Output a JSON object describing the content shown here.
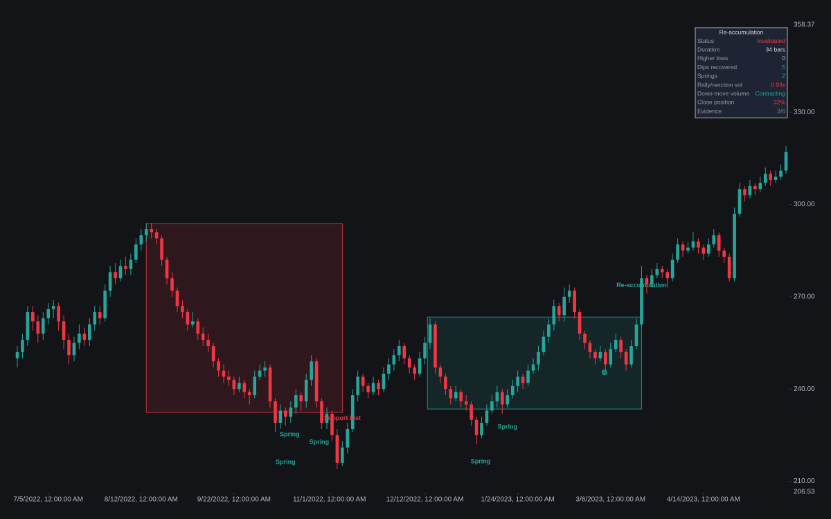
{
  "chart_data": {
    "type": "candlestick",
    "ylim": [
      206.53,
      358.37
    ],
    "yticks": [
      {
        "value": 330,
        "label": "330.00"
      },
      {
        "value": 300,
        "label": "300.00"
      },
      {
        "value": 270,
        "label": "270.00"
      },
      {
        "value": 240,
        "label": "240.00"
      },
      {
        "value": 210,
        "label": "210.00"
      }
    ],
    "xticks": [
      {
        "value": 6,
        "label": "7/5/2022, 12:00:00 AM"
      },
      {
        "value": 24,
        "label": "8/12/2022, 12:00:00 AM"
      },
      {
        "value": 42,
        "label": "9/22/2022, 12:00:00 AM"
      },
      {
        "value": 60.5,
        "label": "11/1/2022, 12:00:00 AM"
      },
      {
        "value": 79,
        "label": "12/12/2022, 12:00:00 AM"
      },
      {
        "value": 97,
        "label": "1/24/2023, 12:00:00 AM"
      },
      {
        "value": 115,
        "label": "3/6/2023, 12:00:00 AM"
      },
      {
        "value": 133,
        "label": "4/14/2023, 12:00:00 AM"
      }
    ],
    "up_color": "#26a69a",
    "down_color": "#f23645",
    "candles": [
      [
        250,
        254,
        247,
        252
      ],
      [
        252,
        258,
        250,
        256
      ],
      [
        256,
        267,
        254,
        265
      ],
      [
        265,
        267,
        259,
        262
      ],
      [
        262,
        264,
        255,
        258
      ],
      [
        258,
        265,
        256,
        263
      ],
      [
        263,
        268,
        261,
        266
      ],
      [
        266,
        269,
        263,
        267
      ],
      [
        267,
        268,
        259,
        262
      ],
      [
        262,
        264,
        253,
        256
      ],
      [
        256,
        258,
        248,
        251
      ],
      [
        251,
        257,
        249,
        255
      ],
      [
        255,
        261,
        253,
        258
      ],
      [
        258,
        260,
        254,
        256
      ],
      [
        256,
        263,
        254,
        261
      ],
      [
        261,
        267,
        259,
        265
      ],
      [
        265,
        267,
        261,
        263
      ],
      [
        263,
        274,
        262,
        272
      ],
      [
        272,
        280,
        270,
        278
      ],
      [
        278,
        281,
        274,
        276
      ],
      [
        276,
        282,
        275,
        280
      ],
      [
        280,
        283,
        277,
        279
      ],
      [
        279,
        284,
        277,
        282
      ],
      [
        282,
        289,
        281,
        287
      ],
      [
        287,
        292,
        285,
        290
      ],
      [
        290,
        294,
        288,
        292
      ],
      [
        292,
        294,
        289,
        291
      ],
      [
        291,
        292,
        287,
        289
      ],
      [
        289,
        290,
        280,
        282
      ],
      [
        282,
        283,
        274,
        276
      ],
      [
        276,
        278,
        270,
        272
      ],
      [
        272,
        273,
        265,
        267
      ],
      [
        267,
        269,
        263,
        265
      ],
      [
        265,
        266,
        259,
        261
      ],
      [
        261,
        265,
        260,
        262
      ],
      [
        262,
        263,
        256,
        258
      ],
      [
        258,
        260,
        254,
        256
      ],
      [
        256,
        258,
        252,
        254
      ],
      [
        254,
        255,
        247,
        249
      ],
      [
        249,
        250,
        244,
        246
      ],
      [
        246,
        248,
        242,
        244
      ],
      [
        244,
        246,
        241,
        243
      ],
      [
        243,
        244,
        238,
        240
      ],
      [
        240,
        244,
        239,
        242
      ],
      [
        242,
        243,
        237,
        239
      ],
      [
        239,
        240,
        235,
        238
      ],
      [
        238,
        246,
        237,
        244
      ],
      [
        244,
        248,
        243,
        246
      ],
      [
        246,
        249,
        244,
        247
      ],
      [
        247,
        248,
        234,
        236
      ],
      [
        236,
        237,
        226,
        229
      ],
      [
        229,
        235,
        227,
        233
      ],
      [
        233,
        234,
        228,
        231
      ],
      [
        231,
        236,
        229,
        234
      ],
      [
        234,
        240,
        232,
        238
      ],
      [
        238,
        239,
        233,
        236
      ],
      [
        236,
        245,
        234,
        243
      ],
      [
        243,
        251,
        241,
        249
      ],
      [
        249,
        250,
        234,
        236
      ],
      [
        236,
        237,
        227,
        229
      ],
      [
        229,
        234,
        227,
        232
      ],
      [
        232,
        233,
        223,
        225
      ],
      [
        225,
        227,
        214,
        216
      ],
      [
        216,
        223,
        215,
        221
      ],
      [
        221,
        229,
        219,
        227
      ],
      [
        227,
        240,
        226,
        238
      ],
      [
        238,
        246,
        236,
        244
      ],
      [
        244,
        245,
        239,
        241
      ],
      [
        241,
        242,
        237,
        239
      ],
      [
        239,
        244,
        238,
        242
      ],
      [
        242,
        243,
        238,
        240
      ],
      [
        240,
        247,
        239,
        245
      ],
      [
        245,
        250,
        243,
        248
      ],
      [
        248,
        253,
        246,
        251
      ],
      [
        251,
        256,
        249,
        254
      ],
      [
        254,
        255,
        248,
        250
      ],
      [
        250,
        251,
        245,
        247
      ],
      [
        247,
        248,
        243,
        245
      ],
      [
        245,
        252,
        244,
        250
      ],
      [
        250,
        257,
        248,
        255
      ],
      [
        255,
        263,
        253,
        261
      ],
      [
        261,
        262,
        245,
        247
      ],
      [
        247,
        248,
        242,
        244
      ],
      [
        244,
        245,
        238,
        240
      ],
      [
        240,
        241,
        235,
        237
      ],
      [
        237,
        241,
        236,
        239
      ],
      [
        239,
        240,
        234,
        236
      ],
      [
        236,
        238,
        233,
        235
      ],
      [
        235,
        236,
        228,
        230
      ],
      [
        230,
        231,
        222,
        225
      ],
      [
        225,
        231,
        224,
        229
      ],
      [
        229,
        235,
        228,
        233
      ],
      [
        233,
        238,
        232,
        236
      ],
      [
        236,
        241,
        234,
        239
      ],
      [
        239,
        240,
        232,
        235
      ],
      [
        235,
        240,
        234,
        238
      ],
      [
        238,
        243,
        237,
        241
      ],
      [
        241,
        246,
        239,
        244
      ],
      [
        244,
        245,
        240,
        242
      ],
      [
        242,
        248,
        241,
        246
      ],
      [
        246,
        250,
        245,
        248
      ],
      [
        248,
        254,
        246,
        252
      ],
      [
        252,
        259,
        251,
        257
      ],
      [
        257,
        263,
        255,
        261
      ],
      [
        261,
        269,
        259,
        267
      ],
      [
        267,
        268,
        262,
        264
      ],
      [
        264,
        273,
        262,
        270
      ],
      [
        270,
        274,
        268,
        272
      ],
      [
        272,
        273,
        263,
        265
      ],
      [
        265,
        266,
        256,
        258
      ],
      [
        258,
        259,
        253,
        255
      ],
      [
        255,
        256,
        250,
        252
      ],
      [
        252,
        253,
        248,
        250
      ],
      [
        250,
        254,
        249,
        252
      ],
      [
        252,
        253,
        246,
        248
      ],
      [
        248,
        255,
        247,
        253
      ],
      [
        253,
        258,
        252,
        256
      ],
      [
        256,
        257,
        250,
        252
      ],
      [
        252,
        253,
        246,
        248
      ],
      [
        248,
        256,
        247,
        254
      ],
      [
        254,
        263,
        253,
        261
      ],
      [
        261,
        280,
        260,
        276
      ],
      [
        276,
        277,
        271,
        274
      ],
      [
        274,
        279,
        273,
        277
      ],
      [
        277,
        281,
        276,
        279
      ],
      [
        279,
        280,
        276,
        278
      ],
      [
        278,
        279,
        273,
        276
      ],
      [
        276,
        284,
        275,
        282
      ],
      [
        282,
        289,
        281,
        287
      ],
      [
        287,
        288,
        283,
        285
      ],
      [
        285,
        288,
        284,
        286
      ],
      [
        286,
        291,
        285,
        288
      ],
      [
        288,
        289,
        284,
        286
      ],
      [
        286,
        287,
        282,
        284
      ],
      [
        284,
        289,
        283,
        287
      ],
      [
        287,
        292,
        286,
        290
      ],
      [
        290,
        291,
        283,
        285
      ],
      [
        285,
        286,
        281,
        283
      ],
      [
        283,
        284,
        275,
        276
      ],
      [
        276,
        299,
        275,
        297
      ],
      [
        297,
        307,
        296,
        305
      ],
      [
        305,
        306,
        301,
        303
      ],
      [
        303,
        308,
        302,
        306
      ],
      [
        306,
        307,
        303,
        305
      ],
      [
        305,
        309,
        304,
        307
      ],
      [
        307,
        312,
        306,
        310
      ],
      [
        310,
        311,
        306,
        308
      ],
      [
        308,
        311,
        307,
        309
      ],
      [
        309,
        313,
        308,
        311
      ],
      [
        311,
        319,
        310,
        317
      ]
    ],
    "zones": [
      {
        "start": 25,
        "end": 63,
        "top": 293.8,
        "bottom": 232.4,
        "color": "#f23645"
      },
      {
        "start": 79.5,
        "end": 121,
        "top": 263.4,
        "bottom": 233.5,
        "color": "#26a69a"
      }
    ],
    "annotations": [
      {
        "text": "Support lost",
        "x": 63,
        "y": 230.5,
        "color": "#f23645"
      },
      {
        "text": "Spring",
        "x": 52.8,
        "y": 225.2,
        "color": "#26a69a"
      },
      {
        "text": "Spring",
        "x": 58.5,
        "y": 222.7,
        "color": "#26a69a"
      },
      {
        "text": "Spring",
        "x": 52,
        "y": 216.2,
        "color": "#26a69a"
      },
      {
        "text": "Spring",
        "x": 89.8,
        "y": 216.4,
        "color": "#26a69a"
      },
      {
        "text": "Spring",
        "x": 95,
        "y": 227.7,
        "color": "#26a69a"
      },
      {
        "text": "Re-accumulation",
        "x": 121,
        "y": 273.6,
        "color": "#26a69a"
      }
    ],
    "markers": [
      {
        "x": 113.8,
        "y": 245.4,
        "color": "#26a69a"
      }
    ],
    "panel": {
      "title": "Re-accumulation",
      "rows": [
        {
          "label": "Status",
          "value": "Invalidated",
          "color": "#f23645"
        },
        {
          "label": "Duration",
          "value": "34 bars",
          "color": "#d1d4dc"
        },
        {
          "label": "Higher lows",
          "value": "0",
          "color": "#b2b5be"
        },
        {
          "label": "Dips recovered",
          "value": "5",
          "color": "#26a69a"
        },
        {
          "label": "Springs",
          "value": "2",
          "color": "#26a69a"
        },
        {
          "label": "Rally/reaction vol",
          "value": "0.93x",
          "color": "#f23645"
        },
        {
          "label": "Down-move volume",
          "value": "Contracting",
          "color": "#26a69a"
        },
        {
          "label": "Close position",
          "value": "32%",
          "color": "#f23645"
        },
        {
          "label": "Evidence",
          "value": "3/6",
          "color": "#787b86"
        }
      ]
    }
  }
}
